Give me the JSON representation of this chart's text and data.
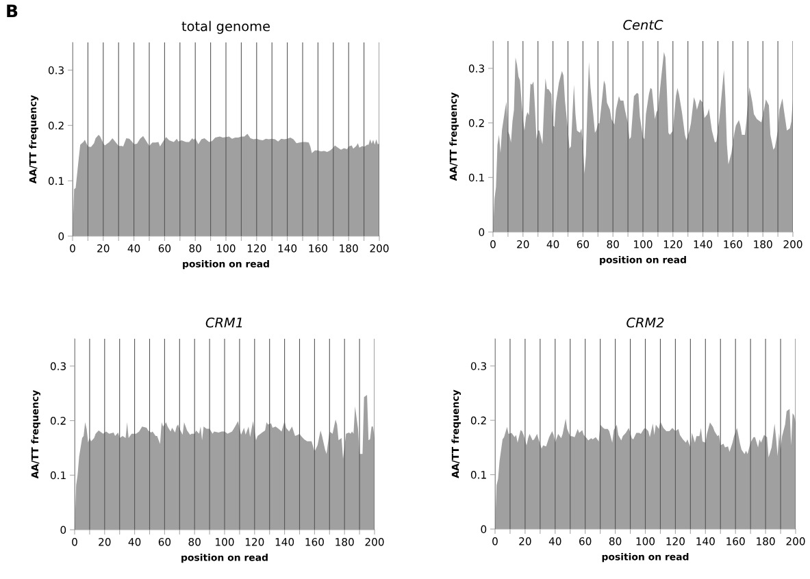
{
  "chart_data": [
    {
      "type": "area",
      "title": "total genome",
      "xlabel": "position on read",
      "ylabel": "AA/TT frequency",
      "annotations": [
        "B"
      ],
      "xlim": [
        0,
        200
      ],
      "ylim": [
        0,
        0.35
      ],
      "yticks": [
        0,
        0.1,
        0.2,
        0.3
      ],
      "xticks": [
        0,
        {
          "value": 10,
          "label": null
        },
        20,
        {
          "value": 30,
          "label": null
        },
        40,
        {
          "value": 50,
          "label": null
        },
        60,
        {
          "value": 70,
          "label": null
        },
        80,
        {
          "value": 90,
          "label": null
        },
        100,
        {
          "value": 110,
          "label": null
        },
        120,
        {
          "value": 130,
          "label": null
        },
        140,
        {
          "value": 150,
          "label": null
        },
        160,
        {
          "value": 170,
          "label": null
        },
        180,
        {
          "value": 190,
          "label": null
        },
        200
      ],
      "grid": "x",
      "series": [
        {
          "color": "#a0a0a0",
          "x": [
            0,
            1,
            2,
            4,
            5,
            7,
            8,
            9,
            10,
            12,
            14,
            15,
            17,
            18,
            20,
            21,
            24,
            26,
            28,
            30,
            32,
            33,
            35,
            37,
            39,
            40,
            42,
            44,
            46,
            48,
            50,
            52,
            54,
            56,
            57,
            59,
            61,
            63,
            66,
            68,
            69,
            71,
            74,
            76,
            78,
            79,
            80,
            82,
            84,
            86,
            89,
            91,
            93,
            96,
            98,
            100,
            102,
            104,
            106,
            108,
            110,
            112,
            114,
            116,
            118,
            120,
            122,
            124,
            126,
            128,
            130,
            132,
            134,
            136,
            138,
            140,
            142,
            144,
            146,
            148,
            150,
            152,
            154,
            155,
            156,
            158,
            160,
            162,
            164,
            166,
            168,
            170,
            171,
            173,
            175,
            177,
            179,
            180,
            182,
            183,
            185,
            186,
            187,
            189,
            190,
            192,
            193,
            194,
            195,
            196,
            197,
            198,
            199,
            200
          ],
          "values": [
            0,
            0.085,
            0.087,
            0.14,
            0.165,
            0.17,
            0.174,
            0.168,
            0.162,
            0.161,
            0.168,
            0.177,
            0.183,
            0.18,
            0.168,
            0.164,
            0.17,
            0.177,
            0.17,
            0.163,
            0.163,
            0.162,
            0.177,
            0.176,
            0.17,
            0.166,
            0.167,
            0.176,
            0.181,
            0.172,
            0.163,
            0.169,
            0.169,
            0.17,
            0.162,
            0.171,
            0.179,
            0.173,
            0.17,
            0.176,
            0.171,
            0.173,
            0.17,
            0.17,
            0.177,
            0.174,
            0.177,
            0.166,
            0.175,
            0.177,
            0.17,
            0.172,
            0.178,
            0.18,
            0.178,
            0.179,
            0.18,
            0.176,
            0.178,
            0.178,
            0.18,
            0.18,
            0.185,
            0.177,
            0.175,
            0.176,
            0.174,
            0.173,
            0.176,
            0.175,
            0.176,
            0.175,
            0.171,
            0.176,
            0.175,
            0.176,
            0.178,
            0.175,
            0.168,
            0.169,
            0.17,
            0.17,
            0.169,
            0.162,
            0.15,
            0.155,
            0.155,
            0.153,
            0.154,
            0.152,
            0.155,
            0.16,
            0.164,
            0.16,
            0.156,
            0.159,
            0.157,
            0.162,
            0.164,
            0.158,
            0.163,
            0.168,
            0.16,
            0.163,
            0.161,
            0.165,
            0.165,
            0.175,
            0.167,
            0.174,
            0.165,
            0.175,
            0.166,
            0.167
          ]
        }
      ]
    },
    {
      "type": "area",
      "title": "CentC",
      "xlabel": "position on read",
      "ylabel": "AA/TT frequency",
      "xlim": [
        0,
        200
      ],
      "ylim": [
        0,
        0.35
      ],
      "yticks": [
        0,
        0.1,
        0.2,
        0.3
      ],
      "xticks": [
        0,
        {
          "value": 10,
          "label": null
        },
        20,
        {
          "value": 30,
          "label": null
        },
        40,
        {
          "value": 50,
          "label": null
        },
        60,
        {
          "value": 70,
          "label": null
        },
        80,
        {
          "value": 90,
          "label": null
        },
        100,
        {
          "value": 110,
          "label": null
        },
        120,
        {
          "value": 130,
          "label": null
        },
        140,
        {
          "value": 150,
          "label": null
        },
        160,
        {
          "value": 170,
          "label": null
        },
        180,
        {
          "value": 190,
          "label": null
        },
        200
      ],
      "grid": "x",
      "series": [
        {
          "color": "#a0a0a0",
          "x": [
            0,
            1,
            2,
            3,
            4,
            5,
            6,
            8,
            9,
            10,
            11,
            12,
            13,
            14,
            15,
            16,
            17,
            18,
            19,
            20,
            21,
            22,
            23,
            24,
            25,
            26,
            27,
            28,
            29,
            30,
            31,
            33,
            34,
            35,
            36,
            37,
            39,
            40,
            41,
            42,
            44,
            46,
            47,
            48,
            50,
            51,
            52,
            53,
            54,
            55,
            56,
            58,
            59,
            60,
            61,
            62,
            63,
            64,
            65,
            67,
            68,
            69,
            70,
            71,
            72,
            74,
            75,
            76,
            78,
            79,
            81,
            82,
            84,
            85,
            87,
            88,
            90,
            91,
            92,
            94,
            96,
            97,
            98,
            100,
            101,
            102,
            104,
            105,
            106,
            108,
            109,
            110,
            112,
            114,
            115,
            116,
            117,
            118,
            120,
            122,
            123,
            124,
            126,
            128,
            129,
            131,
            132,
            134,
            135,
            136,
            138,
            140,
            141,
            143,
            144,
            146,
            148,
            149,
            151,
            152,
            154,
            155,
            156,
            157,
            159,
            161,
            162,
            164,
            165,
            166,
            168,
            169,
            170,
            171,
            173,
            174,
            176,
            178,
            179,
            181,
            182,
            184,
            185,
            187,
            188,
            190,
            191,
            193,
            194,
            196,
            198,
            199,
            200
          ],
          "values": [
            0,
            0.061,
            0.082,
            0.16,
            0.178,
            0.145,
            0.187,
            0.224,
            0.239,
            0.184,
            0.178,
            0.164,
            0.203,
            0.224,
            0.32,
            0.307,
            0.285,
            0.278,
            0.241,
            0.207,
            0.186,
            0.211,
            0.22,
            0.214,
            0.272,
            0.27,
            0.276,
            0.228,
            0.17,
            0.186,
            0.186,
            0.161,
            0.228,
            0.282,
            0.262,
            0.262,
            0.253,
            0.195,
            0.193,
            0.237,
            0.274,
            0.295,
            0.287,
            0.241,
            0.186,
            0.153,
            0.157,
            0.216,
            0.27,
            0.216,
            0.186,
            0.182,
            0.19,
            0.161,
            0.107,
            0.141,
            0.237,
            0.312,
            0.266,
            0.212,
            0.182,
            0.187,
            0.199,
            0.199,
            0.224,
            0.278,
            0.27,
            0.237,
            0.224,
            0.207,
            0.197,
            0.224,
            0.249,
            0.241,
            0.241,
            0.224,
            0.199,
            0.17,
            0.174,
            0.249,
            0.255,
            0.253,
            0.211,
            0.174,
            0.17,
            0.216,
            0.253,
            0.264,
            0.262,
            0.207,
            0.22,
            0.224,
            0.278,
            0.33,
            0.32,
            0.257,
            0.182,
            0.178,
            0.186,
            0.249,
            0.264,
            0.253,
            0.22,
            0.178,
            0.168,
            0.186,
            0.199,
            0.247,
            0.239,
            0.224,
            0.243,
            0.237,
            0.209,
            0.216,
            0.226,
            0.186,
            0.164,
            0.166,
            0.209,
            0.237,
            0.297,
            0.245,
            0.161,
            0.124,
            0.145,
            0.182,
            0.195,
            0.205,
            0.195,
            0.178,
            0.178,
            0.203,
            0.237,
            0.266,
            0.237,
            0.216,
            0.207,
            0.203,
            0.201,
            0.228,
            0.243,
            0.232,
            0.178,
            0.151,
            0.155,
            0.186,
            0.224,
            0.245,
            0.224,
            0.186,
            0.19,
            0.203,
            0.243
          ]
        }
      ]
    },
    {
      "type": "area",
      "title": "CRM1",
      "xlabel": "position on read",
      "ylabel": "AA/TT frequency",
      "xlim": [
        0,
        200
      ],
      "ylim": [
        0,
        0.35
      ],
      "yticks": [
        0,
        0.1,
        0.2,
        0.3
      ],
      "xticks": [
        0,
        {
          "value": 10,
          "label": null
        },
        20,
        {
          "value": 30,
          "label": null
        },
        40,
        {
          "value": 50,
          "label": null
        },
        60,
        {
          "value": 70,
          "label": null
        },
        80,
        {
          "value": 90,
          "label": null
        },
        100,
        {
          "value": 110,
          "label": null
        },
        120,
        {
          "value": 130,
          "label": null
        },
        140,
        {
          "value": 150,
          "label": null
        },
        160,
        {
          "value": 170,
          "label": null
        },
        180,
        {
          "value": 190,
          "label": null
        },
        200
      ],
      "grid": "x",
      "series": [
        {
          "color": "#a0a0a0",
          "x": [
            0,
            1,
            2,
            3,
            5,
            6,
            7,
            8,
            9,
            10,
            11,
            13,
            14,
            16,
            17,
            19,
            21,
            23,
            26,
            27,
            29,
            30,
            32,
            34,
            35,
            36,
            38,
            40,
            41,
            43,
            45,
            48,
            49,
            51,
            52,
            54,
            55,
            57,
            58,
            59,
            61,
            62,
            64,
            65,
            67,
            68,
            69,
            70,
            72,
            73,
            75,
            77,
            78,
            80,
            81,
            83,
            84,
            85,
            86,
            88,
            90,
            92,
            93,
            96,
            98,
            100,
            102,
            105,
            107,
            109,
            110,
            111,
            113,
            114,
            116,
            117,
            119,
            121,
            122,
            124,
            125,
            127,
            128,
            129,
            131,
            132,
            134,
            136,
            138,
            140,
            141,
            143,
            145,
            147,
            149,
            150,
            151,
            153,
            155,
            158,
            160,
            162,
            164,
            165,
            167,
            168,
            170,
            172,
            174,
            175,
            176,
            178,
            179,
            181,
            183,
            184,
            185,
            186,
            187,
            189,
            190,
            192,
            193,
            195,
            196,
            197,
            198,
            199,
            200
          ],
          "values": [
            0,
            0.082,
            0.101,
            0.134,
            0.168,
            0.172,
            0.197,
            0.185,
            0.16,
            0.168,
            0.162,
            0.168,
            0.176,
            0.182,
            0.18,
            0.176,
            0.18,
            0.176,
            0.178,
            0.172,
            0.178,
            0.168,
            0.172,
            0.168,
            0.197,
            0.168,
            0.176,
            0.176,
            0.176,
            0.18,
            0.189,
            0.187,
            0.182,
            0.178,
            0.18,
            0.172,
            0.172,
            0.157,
            0.197,
            0.189,
            0.197,
            0.189,
            0.18,
            0.187,
            0.178,
            0.189,
            0.193,
            0.185,
            0.174,
            0.197,
            0.182,
            0.174,
            0.176,
            0.176,
            0.182,
            0.176,
            0.189,
            0.164,
            0.189,
            0.185,
            0.185,
            0.176,
            0.18,
            0.178,
            0.18,
            0.18,
            0.176,
            0.18,
            0.189,
            0.199,
            0.185,
            0.174,
            0.187,
            0.174,
            0.189,
            0.17,
            0.199,
            0.164,
            0.172,
            0.176,
            0.178,
            0.182,
            0.197,
            0.193,
            0.195,
            0.187,
            0.189,
            0.185,
            0.18,
            0.199,
            0.187,
            0.18,
            0.189,
            0.172,
            0.174,
            0.176,
            0.172,
            0.166,
            0.162,
            0.162,
            0.143,
            0.155,
            0.182,
            0.172,
            0.147,
            0.139,
            0.18,
            0.176,
            0.202,
            0.193,
            0.164,
            0.168,
            0.13,
            0.176,
            0.178,
            0.176,
            0.18,
            0.176,
            0.226,
            0.185,
            0.139,
            0.139,
            0.243,
            0.247,
            0.164,
            0.166,
            0.189,
            0.189,
            0.168
          ]
        }
      ]
    },
    {
      "type": "area",
      "title": "CRM2",
      "xlabel": "position on read",
      "ylabel": "AA/TT frequency",
      "xlim": [
        0,
        200
      ],
      "ylim": [
        0,
        0.35
      ],
      "yticks": [
        0,
        0.1,
        0.2,
        0.3
      ],
      "xticks": [
        0,
        {
          "value": 10,
          "label": null
        },
        20,
        {
          "value": 30,
          "label": null
        },
        40,
        {
          "value": 50,
          "label": null
        },
        60,
        {
          "value": 70,
          "label": null
        },
        80,
        {
          "value": 90,
          "label": null
        },
        100,
        {
          "value": 110,
          "label": null
        },
        120,
        {
          "value": 130,
          "label": null
        },
        140,
        {
          "value": 150,
          "label": null
        },
        160,
        {
          "value": 170,
          "label": null
        },
        180,
        {
          "value": 190,
          "label": null
        },
        200
      ],
      "grid": "x",
      "series": [
        {
          "color": "#a0a0a0",
          "x": [
            0,
            1,
            2,
            3,
            5,
            6,
            8,
            9,
            11,
            13,
            14,
            15,
            17,
            18,
            19,
            21,
            22,
            23,
            25,
            26,
            28,
            29,
            31,
            32,
            34,
            36,
            38,
            39,
            40,
            42,
            44,
            45,
            47,
            48,
            50,
            51,
            53,
            55,
            56,
            58,
            59,
            61,
            62,
            64,
            65,
            67,
            69,
            70,
            72,
            73,
            75,
            76,
            78,
            79,
            81,
            82,
            84,
            85,
            87,
            89,
            91,
            92,
            94,
            96,
            97,
            99,
            100,
            102,
            103,
            105,
            106,
            107,
            109,
            110,
            112,
            114,
            116,
            118,
            120,
            122,
            123,
            125,
            127,
            128,
            130,
            131,
            133,
            134,
            136,
            137,
            138,
            140,
            141,
            143,
            145,
            146,
            148,
            149,
            150,
            152,
            153,
            155,
            156,
            158,
            159,
            161,
            163,
            164,
            166,
            167,
            168,
            170,
            172,
            173,
            175,
            176,
            177,
            179,
            181,
            182,
            184,
            186,
            187,
            188,
            189,
            190,
            191,
            193,
            194,
            196,
            197,
            198,
            199,
            200
          ],
          "values": [
            0,
            0.081,
            0.092,
            0.125,
            0.165,
            0.169,
            0.188,
            0.175,
            0.177,
            0.169,
            0.173,
            0.159,
            0.182,
            0.18,
            0.173,
            0.154,
            0.167,
            0.175,
            0.163,
            0.165,
            0.175,
            0.165,
            0.148,
            0.154,
            0.152,
            0.169,
            0.18,
            0.173,
            0.159,
            0.175,
            0.167,
            0.175,
            0.203,
            0.184,
            0.171,
            0.171,
            0.169,
            0.184,
            0.177,
            0.182,
            0.173,
            0.167,
            0.163,
            0.167,
            0.165,
            0.169,
            0.161,
            0.192,
            0.186,
            0.184,
            0.184,
            0.18,
            0.159,
            0.182,
            0.192,
            0.173,
            0.163,
            0.171,
            0.177,
            0.186,
            0.167,
            0.165,
            0.177,
            0.177,
            0.175,
            0.184,
            0.186,
            0.18,
            0.169,
            0.194,
            0.173,
            0.192,
            0.184,
            0.198,
            0.186,
            0.18,
            0.18,
            0.186,
            0.18,
            0.184,
            0.173,
            0.165,
            0.159,
            0.165,
            0.15,
            0.177,
            0.159,
            0.171,
            0.171,
            0.186,
            0.161,
            0.159,
            0.175,
            0.196,
            0.188,
            0.18,
            0.171,
            0.173,
            0.154,
            0.157,
            0.15,
            0.152,
            0.142,
            0.159,
            0.171,
            0.186,
            0.157,
            0.146,
            0.138,
            0.144,
            0.138,
            0.159,
            0.169,
            0.169,
            0.15,
            0.165,
            0.159,
            0.173,
            0.169,
            0.132,
            0.15,
            0.194,
            0.167,
            0.134,
            0.177,
            0.146,
            0.171,
            0.192,
            0.217,
            0.221,
            0.154,
            0.213,
            0.209,
            0.196
          ]
        }
      ]
    }
  ]
}
